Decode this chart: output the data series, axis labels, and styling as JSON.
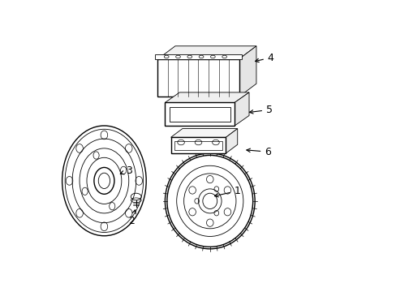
{
  "bg_color": "#ffffff",
  "line_color": "#000000",
  "label_color": "#000000",
  "figsize": [
    4.89,
    3.6
  ],
  "dpi": 100,
  "label_positions": {
    "1": [
      0.635,
      0.345,
      0.545,
      0.325
    ],
    "2": [
      0.27,
      0.24,
      0.285,
      0.29
    ],
    "3": [
      0.26,
      0.415,
      0.22,
      0.4
    ],
    "4": [
      0.75,
      0.805,
      0.685,
      0.79
    ],
    "5": [
      0.745,
      0.625,
      0.665,
      0.615
    ],
    "6": [
      0.74,
      0.48,
      0.655,
      0.487
    ]
  }
}
